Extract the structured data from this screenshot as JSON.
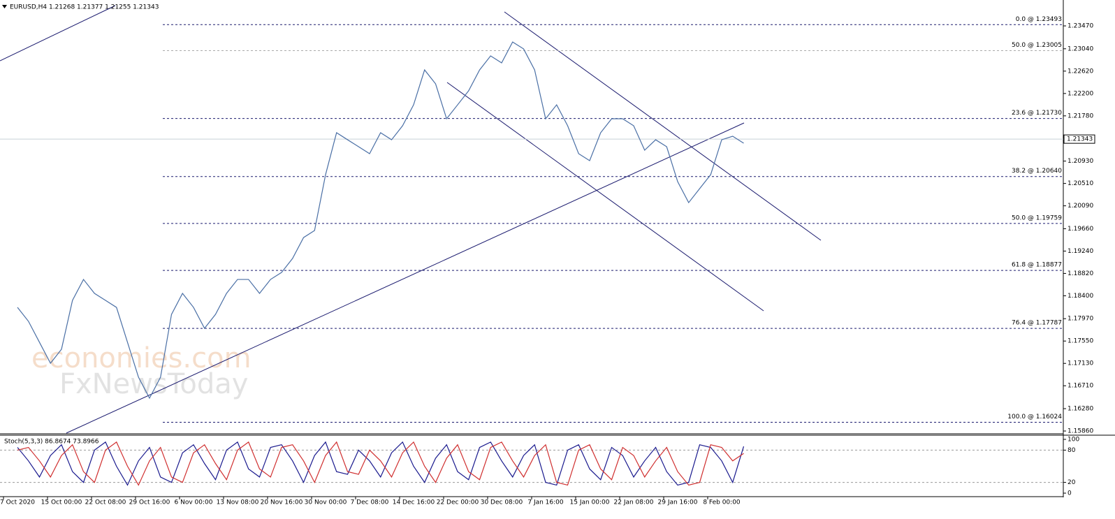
{
  "chart_data": [
    {
      "type": "line",
      "title": "EURUSD,H4  1.21268 1.21377 1.21255 1.21343",
      "watermark": [
        "economies.com",
        "FxNewsToday"
      ],
      "categories": [
        "7 Oct 2020",
        null,
        null,
        null,
        "15 Oct 00:00",
        null,
        null,
        null,
        "22 Oct 08:00",
        null,
        null,
        null,
        "29 Oct 16:00",
        null,
        null,
        null,
        "6 Nov 00:00",
        null,
        null,
        null,
        "13 Nov 08:00",
        null,
        null,
        null,
        "20 Nov 16:00",
        null,
        null,
        null,
        "30 Nov 00:00",
        null,
        null,
        null,
        "7 Dec 08:00",
        null,
        null,
        null,
        "14 Dec 16:00",
        null,
        null,
        null,
        "22 Dec 00:00",
        null,
        null,
        null,
        "30 Dec 08:00",
        null,
        null,
        null,
        "7 Jan 16:00",
        null,
        null,
        null,
        "15 Jan 00:00",
        null,
        null,
        null,
        "22 Jan 08:00",
        null,
        null,
        null,
        "29 Jan 16:00",
        null,
        null,
        null,
        "8 Feb 00:00",
        null,
        null
      ],
      "series": [
        {
          "name": "EURUSD",
          "color": "#4a6fa5",
          "values": [
            1.18182,
            1.1792,
            1.17526,
            1.17133,
            1.17395,
            1.18314,
            1.18707,
            1.18445,
            1.18314,
            1.18182,
            1.17526,
            1.1687,
            1.16477,
            1.1687,
            1.18051,
            1.18445,
            1.18182,
            1.17789,
            1.18051,
            1.18445,
            1.18707,
            1.18707,
            1.18445,
            1.18707,
            1.18838,
            1.19101,
            1.19494,
            1.19626,
            1.20675,
            1.21463,
            1.21331,
            1.212,
            1.21069,
            1.21463,
            1.21331,
            1.21594,
            1.21987,
            1.22643,
            1.22381,
            1.21725,
            1.21987,
            1.2225,
            1.22643,
            1.22906,
            1.22775,
            1.23168,
            1.23037,
            1.22643,
            1.21725,
            1.21987,
            1.21594,
            1.21069,
            1.20938,
            1.21463,
            1.21725,
            1.21725,
            1.21594,
            1.21135,
            1.21331,
            1.212,
            1.20544,
            1.2015,
            1.20413,
            1.20675,
            1.21331,
            1.21397,
            1.21266
          ]
        }
      ],
      "last_price": 1.21343,
      "hlines": [
        {
          "value": 1.23493,
          "label": "0.0 @ 1.23493",
          "color": "#1a1a6e"
        },
        {
          "value": 1.23005,
          "label": "50.0 @ 1.23005",
          "color": "#aaaaaa"
        },
        {
          "value": 1.2173,
          "label": "23.6 @ 1.21730",
          "color": "#1a1a6e"
        },
        {
          "value": 1.2064,
          "label": "38.2 @ 1.20640",
          "color": "#1a1a6e"
        },
        {
          "value": 1.19759,
          "label": "50.0 @ 1.19759",
          "color": "#1a1a6e"
        },
        {
          "value": 1.18877,
          "label": "61.8 @ 1.18877",
          "color": "#1a1a6e"
        },
        {
          "value": 1.17787,
          "label": "76.4 @ 1.17787",
          "color": "#1a1a6e"
        },
        {
          "value": 1.16024,
          "label": "100.0 @ 1.16024",
          "color": "#1a1a6e"
        }
      ],
      "ylim": [
        1.15821,
        1.23956
      ],
      "yticks": [
        {
          "value": 1.2347,
          "label": "1.23470"
        },
        {
          "value": 1.2304,
          "label": "1.23040"
        },
        {
          "value": 1.2262,
          "label": "1.22620"
        },
        {
          "value": 1.222,
          "label": "1.22200"
        },
        {
          "value": 1.2178,
          "label": "1.21780"
        },
        {
          "value": 1.2135,
          "label": "1.21350"
        },
        {
          "value": 1.2093,
          "label": "1.20930"
        },
        {
          "value": 1.2051,
          "label": "1.20510"
        },
        {
          "value": 1.2009,
          "label": "1.20090"
        },
        {
          "value": 1.1966,
          "label": "1.19660"
        },
        {
          "value": 1.1924,
          "label": "1.19240"
        },
        {
          "value": 1.1882,
          "label": "1.18820"
        },
        {
          "value": 1.184,
          "label": "1.18400"
        },
        {
          "value": 1.1797,
          "label": "1.17970"
        },
        {
          "value": 1.1755,
          "label": "1.17550"
        },
        {
          "value": 1.1713,
          "label": "1.17130"
        },
        {
          "value": 1.1671,
          "label": "1.16710"
        },
        {
          "value": 1.1628,
          "label": "1.16280"
        },
        {
          "value": 1.1586,
          "label": "1.15860"
        }
      ]
    },
    {
      "type": "line",
      "title": "Stoch(5,3,3) 86.8674 73.8966",
      "series": [
        {
          "name": "Main",
          "color": "#1a1a8e",
          "values": [
            85,
            60,
            30,
            70,
            90,
            40,
            20,
            80,
            95,
            50,
            15,
            60,
            85,
            30,
            20,
            75,
            90,
            55,
            25,
            80,
            95,
            45,
            30,
            85,
            90,
            60,
            20,
            70,
            95,
            40,
            35,
            80,
            60,
            30,
            75,
            95,
            50,
            20,
            65,
            90,
            40,
            25,
            85,
            95,
            60,
            30,
            70,
            90,
            20,
            15,
            80,
            90,
            45,
            25,
            85,
            70,
            30,
            60,
            85,
            40,
            15,
            20,
            90,
            85,
            60,
            20,
            86.8674
          ]
        },
        {
          "name": "Signal",
          "color": "#d03030",
          "values": [
            80,
            85,
            60,
            30,
            70,
            90,
            40,
            20,
            80,
            95,
            50,
            15,
            60,
            85,
            30,
            20,
            75,
            90,
            55,
            25,
            80,
            95,
            45,
            30,
            85,
            90,
            60,
            20,
            70,
            95,
            40,
            35,
            80,
            60,
            30,
            75,
            95,
            50,
            20,
            65,
            90,
            40,
            25,
            85,
            95,
            60,
            30,
            70,
            90,
            20,
            15,
            80,
            90,
            45,
            25,
            85,
            70,
            30,
            60,
            85,
            40,
            15,
            20,
            90,
            85,
            60,
            73.8966
          ]
        }
      ],
      "ylim": [
        0,
        100
      ],
      "yticks": [
        0,
        20,
        80,
        100
      ],
      "grid": true
    }
  ]
}
